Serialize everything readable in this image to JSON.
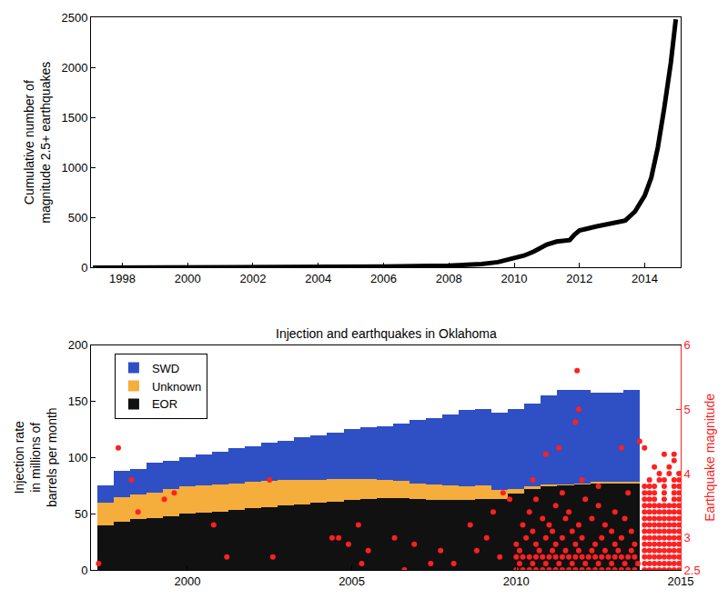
{
  "chart_data": [
    {
      "type": "line",
      "ylabel": "Cumulative number of\nmagnitude 2.5+ earthquakes",
      "x": [
        1997.1,
        2000,
        2004,
        2006,
        2008,
        2009,
        2009.5,
        2010,
        2010.3,
        2010.6,
        2011,
        2011.3,
        2011.7,
        2011.85,
        2012,
        2012.5,
        2013,
        2013.4,
        2013.7,
        2014,
        2014.2,
        2014.4,
        2014.6,
        2014.8,
        2014.95
      ],
      "series": [
        {
          "color": "#000000",
          "line_style": "solid",
          "values": [
            0,
            2,
            5,
            10,
            20,
            35,
            55,
            90,
            120,
            160,
            230,
            260,
            275,
            330,
            370,
            410,
            440,
            470,
            560,
            720,
            900,
            1200,
            1600,
            2050,
            2480
          ]
        }
      ],
      "xlim": [
        1997.04,
        2015.1
      ],
      "xticks": [
        1998,
        2000,
        2002,
        2004,
        2006,
        2008,
        2010,
        2012,
        2014
      ],
      "ylim": [
        0,
        2500
      ],
      "yticks": [
        0,
        500,
        1000,
        1500,
        2000,
        2500
      ],
      "grid": false
    },
    {
      "type": "bar",
      "title": "Injection and earthquakes in Oklahoma",
      "ylabel": "Injection rate\nin millions of\nbarrels per month",
      "y2label": "Earthquake magnitude",
      "stacked": true,
      "legend": "upper left",
      "grid": false,
      "x": [
        1997.5,
        1998,
        1998.5,
        1999,
        1999.5,
        2000,
        2000.5,
        2001,
        2001.5,
        2002,
        2002.5,
        2003,
        2003.5,
        2004,
        2004.5,
        2005,
        2005.5,
        2006,
        2006.5,
        2007,
        2007.5,
        2008,
        2008.5,
        2009,
        2009.5,
        2010,
        2010.5,
        2011,
        2011.5,
        2012,
        2012.5,
        2013,
        2013.5
      ],
      "series": [
        {
          "name": "EOR",
          "color": "#111111",
          "values": [
            40,
            43,
            45,
            46,
            48,
            50,
            51,
            52,
            53,
            55,
            56,
            57,
            58,
            60,
            61,
            62,
            63,
            64,
            64,
            63,
            62,
            62,
            62,
            63,
            63,
            68,
            72,
            74,
            75,
            76,
            77,
            77,
            77
          ]
        },
        {
          "name": "Unknown",
          "color": "#f5ad3c",
          "values": [
            20,
            22,
            22,
            23,
            24,
            24,
            24,
            24,
            24,
            23,
            23,
            23,
            22,
            20,
            20,
            19,
            18,
            16,
            15,
            14,
            14,
            13,
            12,
            12,
            8,
            4,
            2,
            2,
            1,
            1,
            1,
            1,
            1
          ]
        },
        {
          "name": "SWD",
          "color": "#2f4fc4",
          "values": [
            15,
            23,
            23,
            26,
            25,
            26,
            28,
            29,
            31,
            32,
            34,
            35,
            38,
            40,
            41,
            44,
            46,
            48,
            51,
            56,
            59,
            63,
            68,
            68,
            69,
            71,
            74,
            79,
            84,
            83,
            80,
            80,
            82
          ]
        },
        {
          "type": "scatter",
          "axis": "y2",
          "color": "#ff2020",
          "marker": "circle",
          "x": [
            1997.3,
            1997.9,
            1998.3,
            1998.5,
            1999.3,
            1999.6,
            2000.8,
            2001.2,
            2002.5,
            2002.6,
            2004.4,
            2004.6,
            2004.9,
            2005.2,
            2005.3,
            2005.5,
            2006.3,
            2006.6,
            2006.9,
            2007.4,
            2007.7,
            2008.1,
            2008.6,
            2008.8,
            2009.1,
            2009.3,
            2009.5,
            2009.6,
            2009.8,
            2010.0,
            2010.2,
            2010.4,
            2010.6,
            2010.8,
            2011.0,
            2011.2,
            2011.4,
            2011.6,
            2011.8,
            2012.0,
            2012.2,
            2012.4,
            2012.6,
            2012.8,
            2013.0,
            2013.2,
            2013.4,
            2013.6,
            2013.9,
            2014.05,
            2014.2,
            2014.35,
            2014.5,
            2014.65,
            2014.8,
            2014.95,
            2010.1,
            2010.5,
            2010.9,
            2011.3,
            2011.7,
            2012.1,
            2012.5,
            2012.9,
            2013.3,
            2013.7,
            2013.9,
            2014.05,
            2014.2,
            2014.35,
            2014.5,
            2014.65,
            2014.8,
            2014.95,
            2010.0,
            2010.2,
            2010.4,
            2010.6,
            2010.8,
            2011.0,
            2011.2,
            2011.4,
            2011.6,
            2011.8,
            2012.0,
            2012.2,
            2012.4,
            2012.6,
            2012.8,
            2013.0,
            2013.2,
            2013.4,
            2013.6,
            2013.9,
            2014.05,
            2014.2,
            2014.35,
            2014.5,
            2014.65,
            2014.8,
            2014.95,
            2010.1,
            2010.7,
            2011.1,
            2011.5,
            2011.9,
            2012.3,
            2012.7,
            2013.1,
            2013.5,
            2013.9,
            2014.05,
            2014.2,
            2014.35,
            2014.5,
            2014.65,
            2014.8,
            2014.95,
            2010.0,
            2010.6,
            2011.2,
            2011.8,
            2012.4,
            2013.0,
            2013.6,
            2013.9,
            2014.05,
            2014.2,
            2014.35,
            2014.5,
            2014.65,
            2014.8,
            2014.95,
            2010.3,
            2010.9,
            2011.4,
            2012.0,
            2012.6,
            2013.2,
            2013.9,
            2014.05,
            2014.2,
            2014.35,
            2014.5,
            2014.65,
            2014.8,
            2014.95,
            2010.5,
            2011.1,
            2011.7,
            2012.9,
            2013.5,
            2013.9,
            2014.05,
            2014.2,
            2014.35,
            2014.5,
            2014.65,
            2014.8,
            2014.95,
            2010.2,
            2011.0,
            2011.9,
            2012.7,
            2013.9,
            2014.05,
            2014.2,
            2014.35,
            2014.5,
            2014.65,
            2014.8,
            2014.95,
            2010.8,
            2011.5,
            2012.3,
            2013.3,
            2013.9,
            2014.05,
            2014.2,
            2014.35,
            2014.5,
            2014.65,
            2014.8,
            2014.95,
            2010.4,
            2011.6,
            2013.0,
            2013.9,
            2014.05,
            2014.2,
            2014.35,
            2014.5,
            2014.65,
            2014.8,
            2014.95,
            2011.2,
            2012.5,
            2013.9,
            2014.05,
            2014.2,
            2014.35,
            2014.5,
            2014.65,
            2014.8,
            2014.95,
            2010.6,
            2012.1,
            2013.9,
            2014.05,
            2014.2,
            2014.5,
            2014.8,
            2014.95,
            2011.4,
            2013.4,
            2013.9,
            2014.05,
            2014.2,
            2014.5,
            2014.8,
            2014.95,
            2012.5,
            2013.9,
            2014.05,
            2014.2,
            2014.5,
            2014.8,
            2014.95,
            2010.5,
            2012.0,
            2014.05,
            2014.35,
            2014.5,
            2014.8,
            2014.95,
            2014.35,
            2014.65,
            2014.95,
            2014.2,
            2014.65,
            2014.8,
            2010.9,
            2014.5,
            2014.8,
            2011.3,
            2011.85,
            2011.8,
            2011.9,
            2013.2,
            2013.75,
            2013.9
          ],
          "values": [
            2.6,
            4.4,
            3.9,
            3.4,
            3.6,
            3.7,
            3.2,
            2.7,
            3.9,
            2.7,
            3.0,
            3.0,
            2.9,
            3.2,
            2.6,
            2.8,
            3.0,
            2.5,
            2.9,
            2.6,
            2.8,
            2.6,
            3.2,
            2.8,
            3.0,
            3.4,
            2.7,
            3.7,
            3.6,
            2.5,
            2.5,
            2.5,
            2.5,
            2.5,
            2.5,
            2.5,
            2.5,
            2.5,
            2.5,
            2.5,
            2.5,
            2.5,
            2.5,
            2.5,
            2.5,
            2.5,
            2.5,
            2.5,
            2.5,
            2.5,
            2.5,
            2.5,
            2.5,
            2.5,
            2.5,
            2.5,
            2.6,
            2.6,
            2.6,
            2.6,
            2.6,
            2.6,
            2.6,
            2.6,
            2.6,
            2.6,
            2.6,
            2.6,
            2.6,
            2.6,
            2.6,
            2.6,
            2.6,
            2.6,
            2.7,
            2.7,
            2.7,
            2.7,
            2.7,
            2.7,
            2.7,
            2.7,
            2.7,
            2.7,
            2.7,
            2.7,
            2.7,
            2.7,
            2.7,
            2.7,
            2.7,
            2.7,
            2.7,
            2.7,
            2.7,
            2.7,
            2.7,
            2.7,
            2.7,
            2.7,
            2.7,
            2.8,
            2.8,
            2.8,
            2.8,
            2.8,
            2.8,
            2.8,
            2.8,
            2.8,
            2.8,
            2.8,
            2.8,
            2.8,
            2.8,
            2.8,
            2.8,
            2.8,
            2.9,
            2.9,
            2.9,
            2.9,
            2.9,
            2.9,
            2.9,
            2.9,
            2.9,
            2.9,
            2.9,
            2.9,
            2.9,
            2.9,
            2.9,
            3.0,
            3.0,
            3.0,
            3.0,
            3.0,
            3.0,
            3.0,
            3.0,
            3.0,
            3.0,
            3.0,
            3.0,
            3.0,
            3.0,
            3.1,
            3.1,
            3.1,
            3.1,
            3.1,
            3.1,
            3.1,
            3.1,
            3.1,
            3.1,
            3.1,
            3.1,
            3.1,
            3.2,
            3.2,
            3.2,
            3.2,
            3.2,
            3.2,
            3.2,
            3.2,
            3.2,
            3.2,
            3.2,
            3.2,
            3.3,
            3.3,
            3.3,
            3.3,
            3.3,
            3.3,
            3.3,
            3.3,
            3.3,
            3.3,
            3.3,
            3.3,
            3.4,
            3.4,
            3.4,
            3.4,
            3.4,
            3.4,
            3.4,
            3.4,
            3.4,
            3.4,
            3.4,
            3.5,
            3.5,
            3.5,
            3.5,
            3.5,
            3.5,
            3.5,
            3.5,
            3.5,
            3.5,
            3.6,
            3.6,
            3.6,
            3.6,
            3.6,
            3.6,
            3.6,
            3.6,
            3.7,
            3.7,
            3.7,
            3.7,
            3.7,
            3.7,
            3.7,
            3.7,
            3.8,
            3.8,
            3.8,
            3.8,
            3.8,
            3.8,
            3.8,
            3.9,
            3.9,
            3.9,
            3.9,
            3.9,
            3.9,
            3.9,
            4.0,
            4.0,
            4.0,
            4.1,
            4.1,
            4.2,
            4.3,
            4.3,
            4.3,
            4.4,
            5.6,
            4.8,
            5.0,
            4.4,
            4.5,
            4.4
          ]
        }
      ],
      "xlim": [
        1997.07,
        2015
      ],
      "xticks": [
        2000,
        2005,
        2010,
        2015
      ],
      "ylim": [
        0,
        200
      ],
      "yticks": [
        0,
        50,
        100,
        150,
        200
      ],
      "y2lim": [
        2.5,
        6
      ],
      "y2ticks": [
        2.5,
        3,
        4,
        5,
        6
      ]
    }
  ]
}
